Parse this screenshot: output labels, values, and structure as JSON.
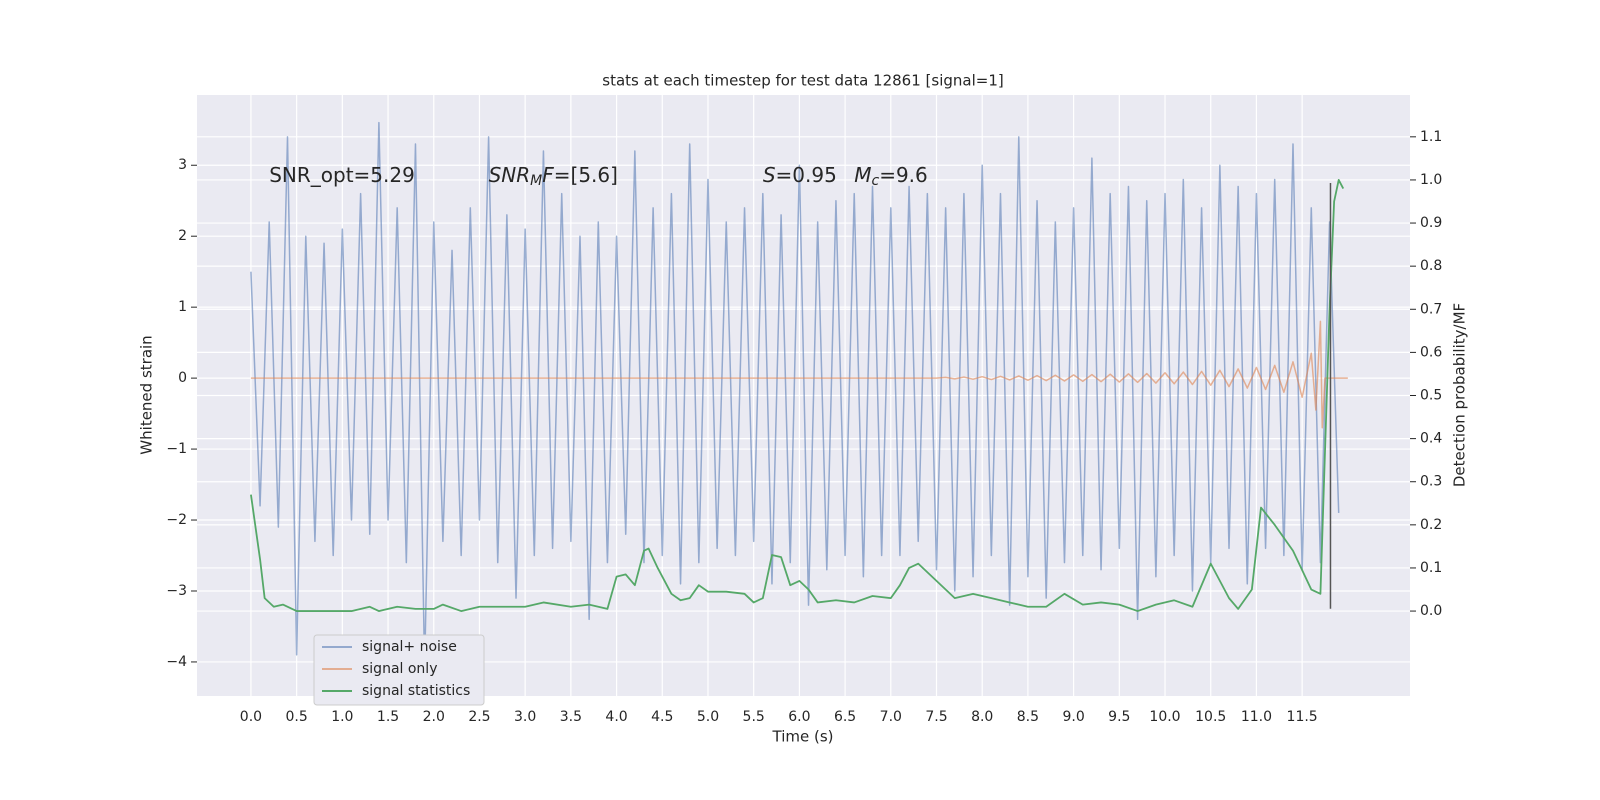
{
  "chart_data": {
    "type": "line",
    "title": "stats at each timestep for test data 12861 [signal=1]",
    "x_label": "Time (s)",
    "y_label": "Whitened strain",
    "y2_label": "Detection probability/MF",
    "xlim": [
      -0.59,
      12.68
    ],
    "ylim": [
      -4.48,
      3.99
    ],
    "y2lim": [
      -0.197,
      1.197
    ],
    "xticks": [
      {
        "value": 0,
        "label": "0.0"
      },
      0.5,
      {
        "value": 1,
        "label": "1.0"
      },
      1.5,
      {
        "value": 2,
        "label": "2.0"
      },
      2.5,
      {
        "value": 3,
        "label": "3.0"
      },
      3.5,
      {
        "value": 4,
        "label": "4.0"
      },
      4.5,
      {
        "value": 5,
        "label": "5.0"
      },
      5.5,
      {
        "value": 6,
        "label": "6.0"
      },
      6.5,
      {
        "value": 7,
        "label": "7.0"
      },
      7.5,
      {
        "value": 8,
        "label": "8.0"
      },
      8.5,
      {
        "value": 9,
        "label": "9.0"
      },
      9.5,
      {
        "value": 10,
        "label": "10.0"
      },
      10.5,
      {
        "value": 11,
        "label": "11.0"
      },
      11.5
    ],
    "yticks": [
      {
        "value": -4,
        "label": "−4"
      },
      {
        "value": -3,
        "label": "−3"
      },
      {
        "value": -2,
        "label": "−2"
      },
      {
        "value": -1,
        "label": "−1"
      },
      0,
      1,
      2,
      3
    ],
    "y2ticks": [
      {
        "value": 0,
        "label": "0.0"
      },
      0.1,
      0.2,
      0.3,
      0.4,
      0.5,
      0.6,
      0.7,
      0.8,
      0.9,
      {
        "value": 1,
        "label": "1.0"
      },
      1.1
    ],
    "grid": true,
    "legend": "lower left",
    "series": [
      {
        "name": "signal+ noise",
        "color": "rgba(76,114,176,0.55)",
        "x": [
          0,
          0.1,
          0.2,
          0.3,
          0.4,
          0.5,
          0.6,
          0.7,
          0.8,
          0.9,
          1,
          1.1,
          1.2,
          1.3,
          1.4,
          1.5,
          1.6,
          1.7,
          1.8,
          1.9,
          2,
          2.1,
          2.2,
          2.3,
          2.4,
          2.5,
          2.6,
          2.7,
          2.8,
          2.9,
          3,
          3.1,
          3.2,
          3.3,
          3.4,
          3.5,
          3.6,
          3.7,
          3.8,
          3.9,
          4,
          4.1,
          4.2,
          4.3,
          4.4,
          4.5,
          4.6,
          4.7,
          4.8,
          4.9,
          5,
          5.1,
          5.2,
          5.3,
          5.4,
          5.5,
          5.6,
          5.7,
          5.8,
          5.9,
          6,
          6.1,
          6.2,
          6.3,
          6.4,
          6.5,
          6.6,
          6.7,
          6.8,
          6.9,
          7,
          7.1,
          7.2,
          7.3,
          7.4,
          7.5,
          7.6,
          7.7,
          7.8,
          7.9,
          8,
          8.1,
          8.2,
          8.3,
          8.4,
          8.5,
          8.6,
          8.7,
          8.8,
          8.9,
          9,
          9.1,
          9.2,
          9.3,
          9.4,
          9.5,
          9.6,
          9.7,
          9.8,
          9.9,
          10,
          10.1,
          10.2,
          10.3,
          10.4,
          10.5,
          10.6,
          10.7,
          10.8,
          10.9,
          11,
          11.1,
          11.2,
          11.3,
          11.4,
          11.5,
          11.6,
          11.7,
          11.8,
          11.9
        ],
        "values": [
          1.5,
          -1.8,
          2.2,
          -2.1,
          3.4,
          -3.9,
          2.0,
          -2.3,
          1.9,
          -2.5,
          2.1,
          -2.0,
          2.6,
          -2.2,
          3.6,
          -2.0,
          2.4,
          -2.6,
          3.3,
          -4.1,
          2.2,
          -2.3,
          1.8,
          -2.5,
          2.4,
          -2.0,
          3.4,
          -2.6,
          2.3,
          -3.1,
          2.1,
          -2.5,
          3.2,
          -2.4,
          2.6,
          -2.3,
          2.0,
          -3.4,
          2.2,
          -2.6,
          2.0,
          -2.2,
          3.2,
          -2.6,
          2.4,
          -2.5,
          2.6,
          -2.9,
          3.3,
          -2.6,
          2.8,
          -2.4,
          2.2,
          -2.5,
          2.4,
          -2.3,
          2.6,
          -2.9,
          2.3,
          -2.6,
          3.0,
          -3.2,
          2.2,
          -2.7,
          2.5,
          -2.5,
          2.6,
          -2.8,
          2.7,
          -2.5,
          2.4,
          -2.5,
          2.7,
          -2.3,
          2.6,
          -2.7,
          2.4,
          -3.0,
          2.6,
          -2.8,
          3.0,
          -2.5,
          2.6,
          -3.2,
          3.4,
          -2.8,
          2.5,
          -3.1,
          2.2,
          -2.6,
          2.4,
          -2.5,
          3.1,
          -2.7,
          2.6,
          -2.4,
          2.7,
          -3.4,
          2.5,
          -2.8,
          2.6,
          -2.5,
          2.8,
          -3.0,
          2.4,
          -2.6,
          3.0,
          -2.4,
          2.7,
          -2.9,
          2.6,
          -2.4,
          2.8,
          -2.5,
          3.3,
          -2.7,
          2.4,
          -2.6,
          2.2,
          -1.9
        ]
      },
      {
        "name": "signal only",
        "color": "rgba(221,132,82,0.6)",
        "x": [
          0,
          7.5,
          7.6,
          7.7,
          7.8,
          7.9,
          8,
          8.1,
          8.2,
          8.3,
          8.4,
          8.5,
          8.6,
          8.7,
          8.8,
          8.9,
          9,
          9.1,
          9.2,
          9.3,
          9.4,
          9.5,
          9.6,
          9.7,
          9.8,
          9.9,
          10,
          10.1,
          10.2,
          10.3,
          10.4,
          10.5,
          10.6,
          10.7,
          10.8,
          10.9,
          11,
          11.1,
          11.2,
          11.3,
          11.4,
          11.5,
          11.6,
          11.65,
          11.7,
          11.72,
          11.75,
          12
        ],
        "values": [
          0,
          0,
          0.01,
          -0.01,
          0.015,
          -0.015,
          0.02,
          -0.02,
          0.025,
          -0.025,
          0.03,
          -0.03,
          0.035,
          -0.035,
          0.04,
          -0.04,
          0.045,
          -0.045,
          0.05,
          -0.05,
          0.055,
          -0.055,
          0.06,
          -0.06,
          0.065,
          -0.07,
          0.075,
          -0.08,
          0.085,
          -0.09,
          0.095,
          -0.1,
          0.11,
          -0.12,
          0.13,
          -0.14,
          0.15,
          -0.16,
          0.18,
          -0.2,
          0.23,
          -0.27,
          0.35,
          -0.45,
          0.8,
          -0.7,
          0,
          0
        ]
      },
      {
        "name": "signal statistics",
        "color": "#55a868",
        "axis": "y2",
        "x": [
          0,
          0.1,
          0.15,
          0.25,
          0.35,
          0.5,
          0.7,
          0.9,
          1.1,
          1.3,
          1.4,
          1.6,
          1.8,
          2.0,
          2.1,
          2.3,
          2.5,
          2.8,
          3.0,
          3.2,
          3.5,
          3.7,
          3.9,
          4.0,
          4.1,
          4.2,
          4.3,
          4.35,
          4.45,
          4.6,
          4.7,
          4.8,
          4.9,
          5.0,
          5.2,
          5.4,
          5.5,
          5.6,
          5.7,
          5.8,
          5.9,
          6.0,
          6.1,
          6.2,
          6.4,
          6.6,
          6.8,
          7.0,
          7.1,
          7.2,
          7.3,
          7.5,
          7.7,
          7.9,
          8.1,
          8.3,
          8.5,
          8.7,
          8.9,
          9.1,
          9.3,
          9.5,
          9.7,
          9.9,
          10.1,
          10.3,
          10.5,
          10.7,
          10.8,
          10.95,
          11.05,
          11.2,
          11.4,
          11.6,
          11.7,
          11.8,
          11.85,
          11.9,
          11.95
        ],
        "values": [
          0.27,
          0.12,
          0.03,
          0.01,
          0.015,
          0.0,
          0.0,
          0.0,
          0.0,
          0.01,
          0.0,
          0.01,
          0.005,
          0.005,
          0.015,
          0.0,
          0.01,
          0.01,
          0.01,
          0.02,
          0.01,
          0.015,
          0.005,
          0.08,
          0.085,
          0.06,
          0.14,
          0.145,
          0.1,
          0.04,
          0.025,
          0.03,
          0.06,
          0.045,
          0.045,
          0.04,
          0.02,
          0.03,
          0.13,
          0.125,
          0.06,
          0.07,
          0.05,
          0.02,
          0.025,
          0.02,
          0.035,
          0.03,
          0.06,
          0.1,
          0.11,
          0.07,
          0.03,
          0.04,
          0.03,
          0.02,
          0.01,
          0.01,
          0.04,
          0.015,
          0.02,
          0.015,
          0.0,
          0.015,
          0.025,
          0.01,
          0.11,
          0.03,
          0.005,
          0.05,
          0.24,
          0.2,
          0.14,
          0.05,
          0.04,
          0.7,
          0.95,
          1.0,
          0.98
        ]
      }
    ],
    "marker_line": {
      "x": 11.81,
      "y": [
        -3.25,
        2.75
      ],
      "color": "#555555"
    },
    "annotations": [
      {
        "x": 0.2,
        "y": 2.85,
        "parts": [
          {
            "text": "SNR_opt=5.29"
          }
        ]
      },
      {
        "x": 2.6,
        "y": 2.85,
        "parts": [
          {
            "text": "SNR",
            "italic": true
          },
          {
            "text": "M",
            "italic": true,
            "sub": true
          },
          {
            "text": "F",
            "italic": true
          },
          {
            "text": "=[5.6]"
          }
        ]
      },
      {
        "x": 5.6,
        "y": 2.85,
        "parts": [
          {
            "text": "S",
            "italic": true
          },
          {
            "text": "=0.95"
          }
        ]
      },
      {
        "x": 6.6,
        "y": 2.85,
        "parts": [
          {
            "text": "M",
            "italic": true
          },
          {
            "text": "c",
            "italic": true,
            "sub": true
          },
          {
            "text": "=9.6"
          }
        ]
      }
    ]
  }
}
